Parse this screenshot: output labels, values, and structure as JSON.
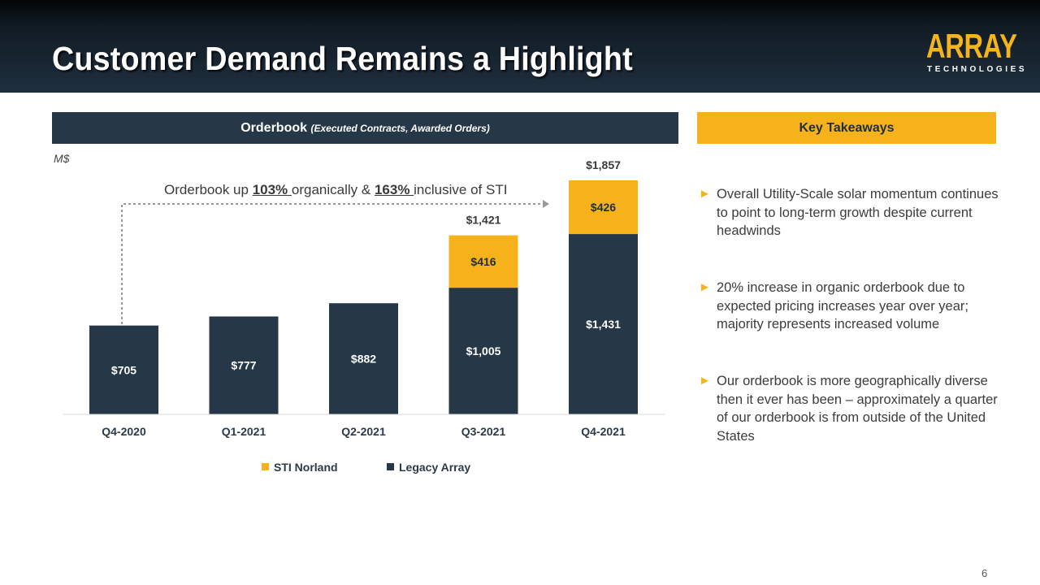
{
  "header": {
    "title": "Customer Demand Remains a Highlight",
    "logo_word": "ARRAY",
    "logo_sub": "TECHNOLOGIES"
  },
  "chart_panel": {
    "title": "Orderbook",
    "subtitle": "(Executed Contracts, Awarded Orders)",
    "unit": "M$"
  },
  "annotation": {
    "part1": "Orderbook up ",
    "pct1": "103% ",
    "part2": "organically & ",
    "pct2": "163% ",
    "part3": "inclusive of STI"
  },
  "chart_data": {
    "type": "bar",
    "stacked": true,
    "title": "Orderbook",
    "subtitle": "(Executed Contracts, Awarded Orders)",
    "ylabel": "M$",
    "xlabel": "",
    "categories": [
      "Q4-2020",
      "Q1-2021",
      "Q2-2021",
      "Q3-2021",
      "Q4-2021"
    ],
    "series": [
      {
        "name": "Legacy Array",
        "color": "#263747",
        "values": [
          705,
          777,
          882,
          1005,
          1431
        ],
        "labels": [
          "$705",
          "$777",
          "$882",
          "$1,005",
          "$1,431"
        ]
      },
      {
        "name": "STI Norland",
        "color": "#f6b21b",
        "values": [
          0,
          0,
          0,
          416,
          426
        ],
        "labels": [
          "",
          "",
          "",
          "$416",
          "$426"
        ]
      }
    ],
    "totals": [
      "",
      "",
      "",
      "$1,421",
      "$1,857"
    ],
    "legend_order": [
      "STI Norland",
      "Legacy Array"
    ],
    "ylim": [
      0,
      1857
    ],
    "grid": false,
    "legend_position": "bottom"
  },
  "takeaways": {
    "title": "Key Takeaways",
    "bullet_glyph": "►",
    "items": [
      "Overall Utility-Scale solar momentum continues to point to long-term growth despite current headwinds",
      "20% increase in organic orderbook due to expected pricing increases year over year; majority represents increased volume",
      "Our orderbook is more geographically diverse then it ever has been – approximately a quarter of our orderbook is from outside of the United States"
    ]
  },
  "page_number": "6"
}
